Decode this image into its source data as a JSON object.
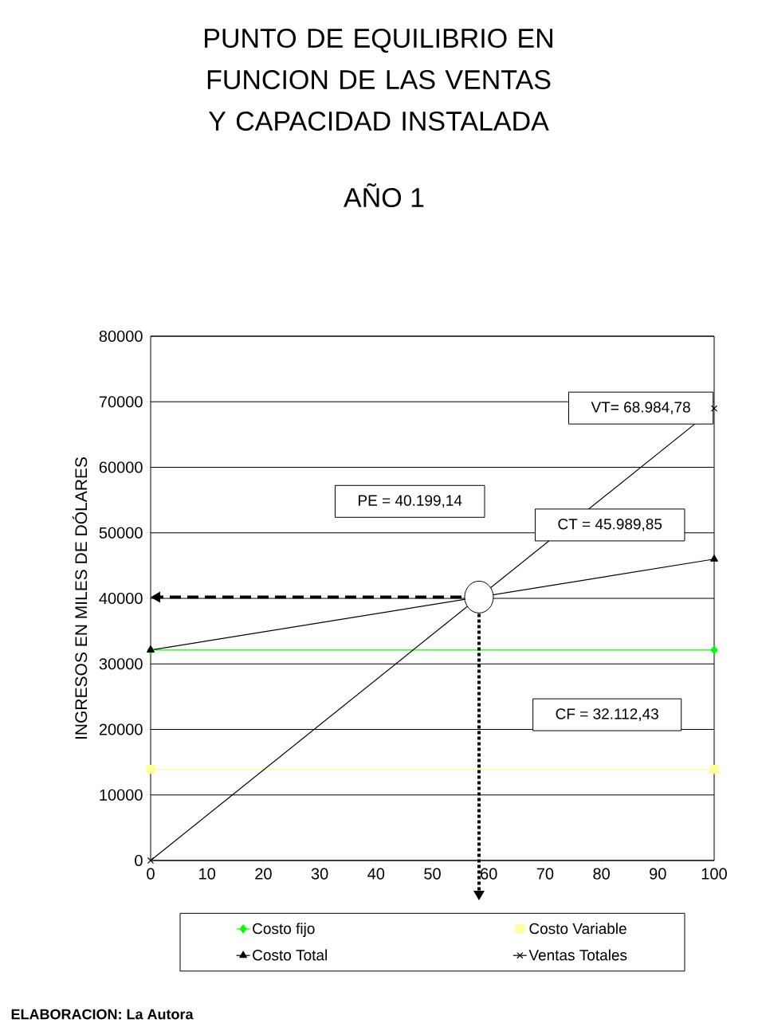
{
  "chart_data": {
    "type": "line",
    "title": "PUNTO DE EQUILIBRIO EN FUNCION DE LAS VENTAS Y CAPACIDAD INSTALADA",
    "subtitle": "AÑO 1",
    "ylabel": "INGRESOS EN MILES DE DÓLARES",
    "x": [
      0,
      100
    ],
    "series": [
      {
        "name": "Costo fijo",
        "color": "#00ff00",
        "marker": "diamond",
        "values": [
          32112.43,
          32112.43
        ]
      },
      {
        "name": "Costo Variable",
        "color": "#ffff99",
        "marker": "square",
        "values": [
          13900,
          13900
        ]
      },
      {
        "name": "Costo Total",
        "color": "#000000",
        "marker": "triangle",
        "values": [
          32112.43,
          45989.85
        ]
      },
      {
        "name": "Ventas Totales",
        "color": "#000000",
        "marker": "cross",
        "values": [
          0,
          68984.78
        ]
      }
    ],
    "xlim": [
      0,
      100
    ],
    "ylim": [
      0,
      80000
    ],
    "xticks": [
      0,
      10,
      20,
      30,
      40,
      50,
      60,
      70,
      80,
      90,
      100
    ],
    "yticks": [
      0,
      10000,
      20000,
      30000,
      40000,
      50000,
      60000,
      70000,
      80000
    ],
    "grid": "y",
    "legend": "bottom",
    "line_style": "solid",
    "ref_lines": [
      {
        "axis": "y",
        "value": 40199.14,
        "line_style": "dashed"
      },
      {
        "axis": "x",
        "value": 58.27,
        "line_style": "dotted"
      }
    ],
    "annotations": [
      "VT= 68.984,78",
      "PE = 40.199,14",
      "CT = 45.989,85",
      "CF = 32.112,43",
      "ELABORACION: La Autora"
    ]
  }
}
